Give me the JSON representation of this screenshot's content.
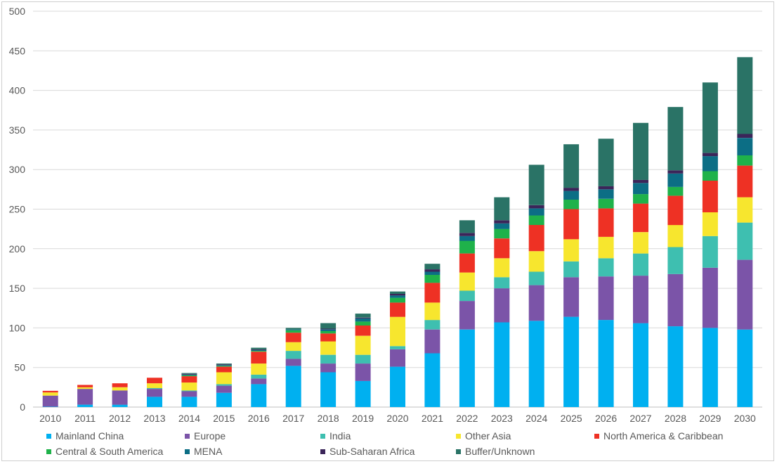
{
  "chart_data": {
    "type": "bar",
    "stacked": true,
    "title": "",
    "xlabel": "",
    "ylabel": "",
    "ylim": [
      0,
      500
    ],
    "yticks": [
      0,
      50,
      100,
      150,
      200,
      250,
      300,
      350,
      400,
      450,
      500
    ],
    "grid": true,
    "legend_position": "bottom",
    "categories": [
      "2010",
      "2011",
      "2012",
      "2013",
      "2014",
      "2015",
      "2016",
      "2017",
      "2018",
      "2019",
      "2020",
      "2021",
      "2022",
      "2023",
      "2024",
      "2025",
      "2026",
      "2027",
      "2028",
      "2029",
      "2030"
    ],
    "series": [
      {
        "name": "Mainland China",
        "color": "#00b0f0",
        "values": [
          0.5,
          3,
          3,
          13,
          13,
          18,
          29,
          52,
          44,
          33,
          51,
          68,
          98,
          107,
          109,
          114,
          110,
          106,
          102,
          100,
          98
        ]
      },
      {
        "name": "Europe",
        "color": "#7b54a8",
        "values": [
          14,
          20,
          18,
          10,
          7,
          9,
          7,
          9,
          11,
          22,
          22,
          30,
          36,
          43,
          45,
          50,
          55,
          60,
          66,
          76,
          88
        ]
      },
      {
        "name": "India",
        "color": "#3ebfb0",
        "values": [
          0,
          0,
          0,
          1,
          1,
          2,
          5,
          10,
          11,
          11,
          4,
          12,
          13,
          14,
          17,
          20,
          23,
          28,
          34,
          40,
          47
        ]
      },
      {
        "name": "Other Asia",
        "color": "#f7e62e",
        "values": [
          4,
          2,
          4,
          6,
          10,
          15,
          14,
          11,
          17,
          24,
          37,
          22,
          23,
          24,
          26,
          28,
          27,
          27,
          28,
          30,
          32
        ]
      },
      {
        "name": "North America & Caribbean",
        "color": "#ee3124",
        "values": [
          2,
          3,
          5,
          7,
          8,
          7,
          15,
          12,
          10,
          13,
          18,
          25,
          24,
          25,
          33,
          38,
          36,
          36,
          37,
          40,
          40
        ]
      },
      {
        "name": "Central & South America",
        "color": "#1fb24a",
        "values": [
          0,
          0,
          0,
          0,
          1,
          1,
          1,
          3,
          3,
          5,
          6,
          10,
          16,
          12,
          12,
          12,
          12,
          12,
          11,
          12,
          13
        ]
      },
      {
        "name": "MENA",
        "color": "#0c6e85",
        "values": [
          0,
          0,
          0,
          0,
          1,
          1,
          1,
          1,
          2,
          4,
          3,
          4,
          6,
          7,
          9,
          11,
          12,
          14,
          17,
          19,
          22
        ]
      },
      {
        "name": "Sub-Saharan Africa",
        "color": "#3b2559",
        "values": [
          0,
          0,
          0,
          0,
          1,
          1,
          1,
          0,
          1,
          1,
          2,
          3,
          4,
          4,
          4,
          4,
          4,
          4,
          4,
          4,
          5
        ]
      },
      {
        "name": "Buffer/Unknown",
        "color": "#2a7366",
        "values": [
          0,
          0,
          0,
          0,
          1,
          1,
          2,
          2,
          7,
          5,
          3,
          7,
          16,
          29,
          51,
          55,
          60,
          72,
          80,
          89,
          97
        ]
      }
    ]
  }
}
